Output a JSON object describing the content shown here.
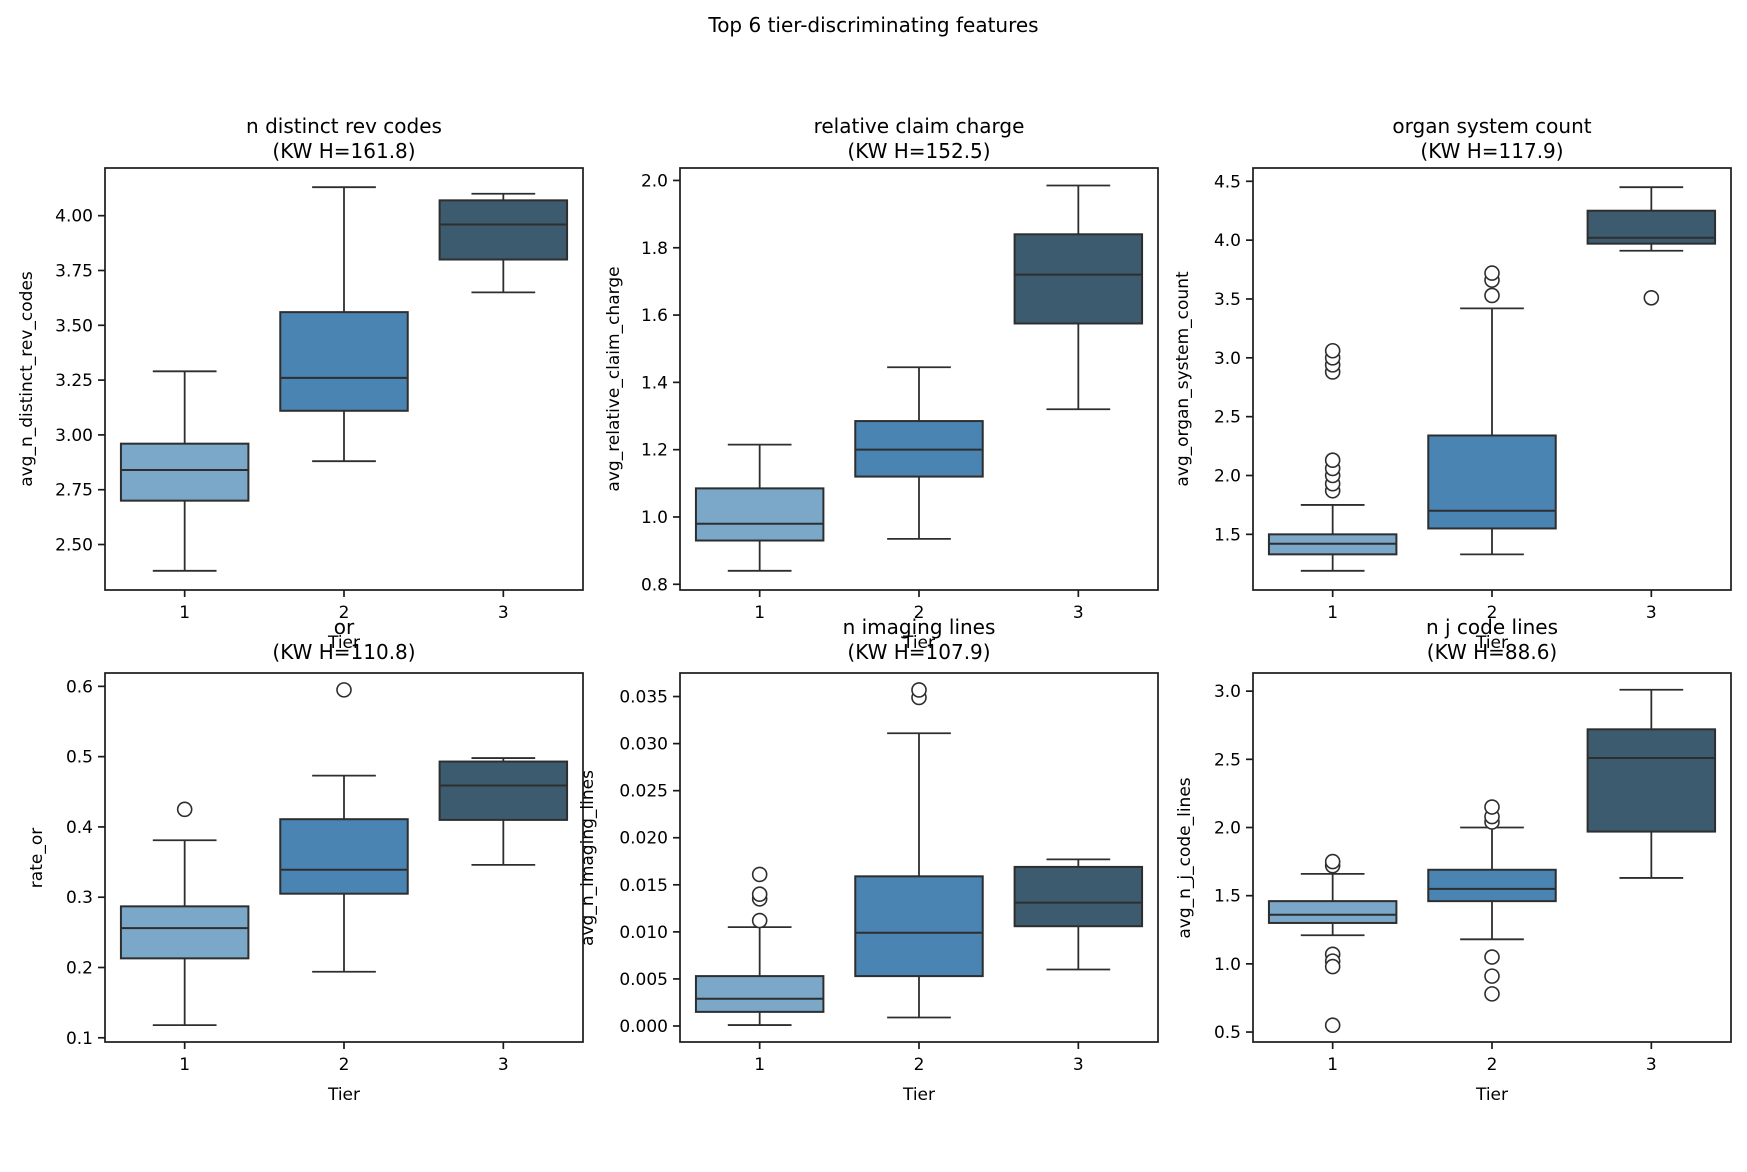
{
  "suptitle": "Top 6 tier-discriminating features",
  "palette": {
    "tier1": "#7BA7C9",
    "tier2": "#4A84B2",
    "tier3": "#3D5B6F",
    "box_edge": "#2E2E2E",
    "spine": "#1A1A1A",
    "text": "#000000"
  },
  "chart_data": {
    "type": "boxplot-grid",
    "layout": {
      "rows": 2,
      "cols": 3,
      "grid": false
    },
    "categories": [
      "1",
      "2",
      "3"
    ],
    "xlim": [
      0.5,
      3.5
    ],
    "subplots": [
      {
        "title": "n distinct rev codes\n(KW H=161.8)",
        "ylabel": "avg_n_distinct_rev_codes",
        "xlabel": "Tier",
        "ylim": [
          2.2925,
          4.2175
        ],
        "yticks": [
          "2.50",
          "2.75",
          "3.00",
          "3.25",
          "3.50",
          "3.75",
          "4.00"
        ],
        "boxes": [
          {
            "tier": "1",
            "whislo": 2.38,
            "q1": 2.7,
            "med": 2.84,
            "q3": 2.96,
            "whishi": 3.29,
            "fliers": []
          },
          {
            "tier": "2",
            "whislo": 2.88,
            "q1": 3.11,
            "med": 3.26,
            "q3": 3.56,
            "whishi": 4.13,
            "fliers": []
          },
          {
            "tier": "3",
            "whislo": 3.65,
            "q1": 3.8,
            "med": 3.96,
            "q3": 4.07,
            "whishi": 4.1,
            "fliers": []
          }
        ]
      },
      {
        "title": "relative claim charge\n(KW H=152.5)",
        "ylabel": "avg_relative_claim_charge",
        "xlabel": "Tier",
        "ylim": [
          0.783,
          2.037
        ],
        "yticks": [
          "0.8",
          "1.0",
          "1.2",
          "1.4",
          "1.6",
          "1.8",
          "2.0"
        ],
        "boxes": [
          {
            "tier": "1",
            "whislo": 0.84,
            "q1": 0.93,
            "med": 0.98,
            "q3": 1.085,
            "whishi": 1.215,
            "fliers": []
          },
          {
            "tier": "2",
            "whislo": 0.935,
            "q1": 1.12,
            "med": 1.2,
            "q3": 1.285,
            "whishi": 1.445,
            "fliers": []
          },
          {
            "tier": "3",
            "whislo": 1.32,
            "q1": 1.575,
            "med": 1.72,
            "q3": 1.84,
            "whishi": 1.985,
            "fliers": []
          }
        ]
      },
      {
        "title": "organ system count\n(KW H=117.9)",
        "ylabel": "avg_organ_system_count",
        "xlabel": "Tier",
        "ylim": [
          1.027,
          4.613
        ],
        "yticks": [
          "1.5",
          "2.0",
          "2.5",
          "3.0",
          "3.5",
          "4.0",
          "4.5"
        ],
        "boxes": [
          {
            "tier": "1",
            "whislo": 1.19,
            "q1": 1.33,
            "med": 1.42,
            "q3": 1.5,
            "whishi": 1.75,
            "fliers": [
              1.87,
              1.93,
              2.0,
              2.06,
              2.13,
              2.88,
              2.94,
              3.0,
              3.06
            ]
          },
          {
            "tier": "2",
            "whislo": 1.33,
            "q1": 1.55,
            "med": 1.7,
            "q3": 2.34,
            "whishi": 3.42,
            "fliers": [
              3.53,
              3.66,
              3.72
            ]
          },
          {
            "tier": "3",
            "whislo": 3.91,
            "q1": 3.97,
            "med": 4.02,
            "q3": 4.25,
            "whishi": 4.45,
            "fliers": [
              3.51
            ]
          }
        ]
      },
      {
        "title": "or\n(KW H=110.8)",
        "ylabel": "rate_or",
        "xlabel": "Tier",
        "ylim": [
          0.094,
          0.619
        ],
        "yticks": [
          "0.1",
          "0.2",
          "0.3",
          "0.4",
          "0.5",
          "0.6"
        ],
        "boxes": [
          {
            "tier": "1",
            "whislo": 0.118,
            "q1": 0.213,
            "med": 0.256,
            "q3": 0.287,
            "whishi": 0.381,
            "fliers": [
              0.425
            ]
          },
          {
            "tier": "2",
            "whislo": 0.194,
            "q1": 0.305,
            "med": 0.339,
            "q3": 0.411,
            "whishi": 0.473,
            "fliers": [
              0.595
            ]
          },
          {
            "tier": "3",
            "whislo": 0.346,
            "q1": 0.41,
            "med": 0.459,
            "q3": 0.493,
            "whishi": 0.498,
            "fliers": []
          }
        ]
      },
      {
        "title": "n imaging lines\n(KW H=107.9)",
        "ylabel": "avg_n_imaging_lines",
        "xlabel": "Tier",
        "ylim": [
          -0.0017,
          0.0375
        ],
        "yticks": [
          "0.000",
          "0.005",
          "0.010",
          "0.015",
          "0.020",
          "0.025",
          "0.030",
          "0.035"
        ],
        "boxes": [
          {
            "tier": "1",
            "whislo": 0.0001,
            "q1": 0.0015,
            "med": 0.0029,
            "q3": 0.0053,
            "whishi": 0.0105,
            "fliers": [
              0.0112,
              0.0135,
              0.014,
              0.0161
            ]
          },
          {
            "tier": "2",
            "whislo": 0.0009,
            "q1": 0.0053,
            "med": 0.0099,
            "q3": 0.0159,
            "whishi": 0.0311,
            "fliers": [
              0.0349,
              0.0357
            ]
          },
          {
            "tier": "3",
            "whislo": 0.006,
            "q1": 0.0106,
            "med": 0.0131,
            "q3": 0.0169,
            "whishi": 0.0177,
            "fliers": []
          }
        ]
      },
      {
        "title": "n j code lines\n(KW H=88.6)",
        "ylabel": "avg_n_j_code_lines",
        "xlabel": "Tier",
        "ylim": [
          0.427,
          3.133
        ],
        "yticks": [
          "0.5",
          "1.0",
          "1.5",
          "2.0",
          "2.5",
          "3.0"
        ],
        "boxes": [
          {
            "tier": "1",
            "whislo": 1.21,
            "q1": 1.3,
            "med": 1.36,
            "q3": 1.46,
            "whishi": 1.66,
            "fliers": [
              1.72,
              1.75,
              1.07,
              1.02,
              0.98,
              0.55
            ]
          },
          {
            "tier": "2",
            "whislo": 1.18,
            "q1": 1.46,
            "med": 1.55,
            "q3": 1.69,
            "whishi": 2.0,
            "fliers": [
              2.04,
              2.08,
              2.15,
              1.05,
              0.91,
              0.78
            ]
          },
          {
            "tier": "3",
            "whislo": 1.63,
            "q1": 1.97,
            "med": 2.51,
            "q3": 2.72,
            "whishi": 3.01,
            "fliers": []
          }
        ]
      }
    ]
  }
}
